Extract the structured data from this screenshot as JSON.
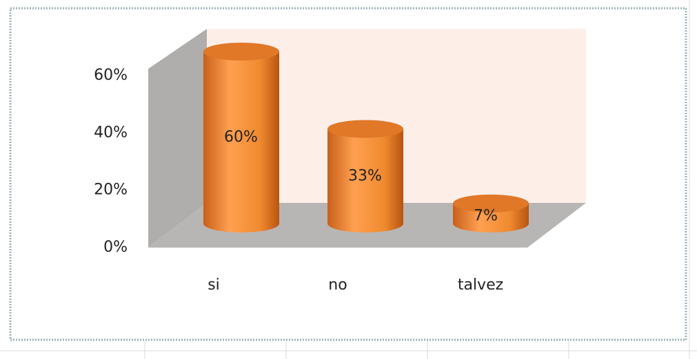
{
  "chart_data": {
    "type": "bar3d",
    "categories": [
      "si",
      "no",
      "talvez"
    ],
    "values": [
      60,
      33,
      7
    ],
    "value_labels": [
      "60%",
      "33%",
      "7%"
    ],
    "color": "#f08a30",
    "ylim": [
      0,
      60
    ],
    "yticks": [
      {
        "value": 0,
        "label": "0%"
      },
      {
        "value": 20,
        "label": "20%"
      },
      {
        "value": 40,
        "label": "40%"
      },
      {
        "value": 60,
        "label": "60%"
      }
    ]
  }
}
